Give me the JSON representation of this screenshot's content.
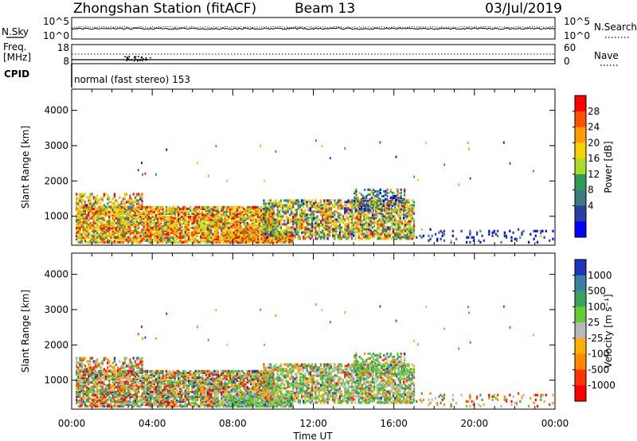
{
  "header": {
    "station": "Zhongshan Station (fitACF)",
    "beam": "Beam 13",
    "date": "03/Jul/2019"
  },
  "strip": {
    "nsky_label": "N.Sky",
    "nsearch_label": "N.Search",
    "left_ticks": [
      "10^5",
      "10^0"
    ],
    "right_ticks": [
      "10^5",
      "10^0"
    ],
    "freq_label_1": "Freq.",
    "freq_label_2": "[MHz]",
    "freq_ticks": [
      "18",
      "8"
    ],
    "nave_label": "Nave",
    "nave_ticks": [
      "60",
      "0"
    ],
    "cpid_label": "CPID",
    "cpid_value": "normal (fast stereo) 153"
  },
  "chart_data": [
    {
      "type": "heatmap",
      "name": "power",
      "ylabel": "Slant Range [km]",
      "y_ticks": [
        "4000",
        "3000",
        "2000",
        "1000"
      ],
      "y_tick_values": [
        4000,
        3000,
        2000,
        1000
      ],
      "ylim": [
        180,
        4600
      ],
      "colorbar_label": "Power [dB]",
      "colorbar_ticks": [
        "28",
        "24",
        "20",
        "16",
        "12",
        "8",
        "4"
      ],
      "colorbar_colors": [
        "#ff0000",
        "#ff5000",
        "#ff9a00",
        "#f5d200",
        "#aadb2a",
        "#2e9c55",
        "#3d7a80",
        "#2a3ea0",
        "#0000ff"
      ],
      "clusters": [
        {
          "t0": 0.2,
          "t1": 10.0,
          "r0": 300,
          "r1": 1300,
          "density": 0.75,
          "bias": [
            0.0,
            0.2,
            0.5,
            0.25
          ]
        },
        {
          "t0": 0.2,
          "t1": 3.5,
          "r0": 1300,
          "r1": 1700,
          "density": 0.4,
          "bias": [
            0.05,
            0.25,
            0.5,
            0.2
          ]
        },
        {
          "t0": 7.5,
          "t1": 11.0,
          "r0": 300,
          "r1": 600,
          "density": 0.85,
          "bias": [
            0.0,
            0.1,
            0.5,
            0.4
          ]
        },
        {
          "t0": 9.5,
          "t1": 17.0,
          "r0": 400,
          "r1": 1500,
          "density": 0.6,
          "bias": [
            0.1,
            0.35,
            0.4,
            0.15
          ]
        },
        {
          "t0": 14.0,
          "t1": 16.5,
          "r0": 1200,
          "r1": 1800,
          "density": 0.45,
          "bias": [
            0.3,
            0.45,
            0.15,
            0.1
          ]
        },
        {
          "t0": 17.0,
          "t1": 23.9,
          "r0": 300,
          "r1": 700,
          "density": 0.12,
          "bias": [
            0.9,
            0.1,
            0.0,
            0.0
          ]
        }
      ]
    },
    {
      "type": "heatmap",
      "name": "velocity",
      "ylabel": "Slant Range [km]",
      "y_ticks": [
        "4000",
        "3000",
        "2000",
        "1000"
      ],
      "y_tick_values": [
        4000,
        3000,
        2000,
        1000
      ],
      "ylim": [
        180,
        4600
      ],
      "colorbar_label": "Velocity [m s⁻¹]",
      "colorbar_ticks": [
        "1000",
        "500",
        "100",
        "25",
        "-25",
        "-100",
        "-500",
        "-1000"
      ],
      "colorbar_colors": [
        "#2233bb",
        "#3d7fa0",
        "#3aa060",
        "#66cc33",
        "#b8b8b8",
        "#ffb000",
        "#ff8800",
        "#ff3300",
        "#ff0000"
      ],
      "clusters": [
        {
          "t0": 0.2,
          "t1": 10.0,
          "r0": 300,
          "r1": 1300,
          "density": 0.75,
          "bias": [
            0.2,
            0.25,
            0.4,
            0.15
          ]
        },
        {
          "t0": 0.2,
          "t1": 3.5,
          "r0": 1300,
          "r1": 1700,
          "density": 0.4,
          "bias": [
            0.3,
            0.3,
            0.3,
            0.1
          ]
        },
        {
          "t0": 7.5,
          "t1": 11.0,
          "r0": 300,
          "r1": 600,
          "density": 0.85,
          "bias": [
            0.0,
            0.05,
            0.9,
            0.05
          ]
        },
        {
          "t0": 9.5,
          "t1": 17.0,
          "r0": 400,
          "r1": 1500,
          "density": 0.6,
          "bias": [
            0.1,
            0.2,
            0.65,
            0.05
          ]
        },
        {
          "t0": 14.0,
          "t1": 16.5,
          "r0": 1200,
          "r1": 1800,
          "density": 0.45,
          "bias": [
            0.05,
            0.1,
            0.8,
            0.05
          ]
        },
        {
          "t0": 17.0,
          "t1": 23.9,
          "r0": 300,
          "r1": 700,
          "density": 0.12,
          "bias": [
            0.4,
            0.4,
            0.2,
            0.0
          ]
        }
      ]
    }
  ],
  "xaxis": {
    "xlabel": "Time UT",
    "x_ticks": [
      "00:00",
      "04:00",
      "08:00",
      "12:00",
      "16:00",
      "20:00",
      "00:00"
    ],
    "x_tick_values": [
      0,
      4,
      8,
      12,
      16,
      20,
      24
    ],
    "xlim": [
      0,
      24
    ]
  }
}
